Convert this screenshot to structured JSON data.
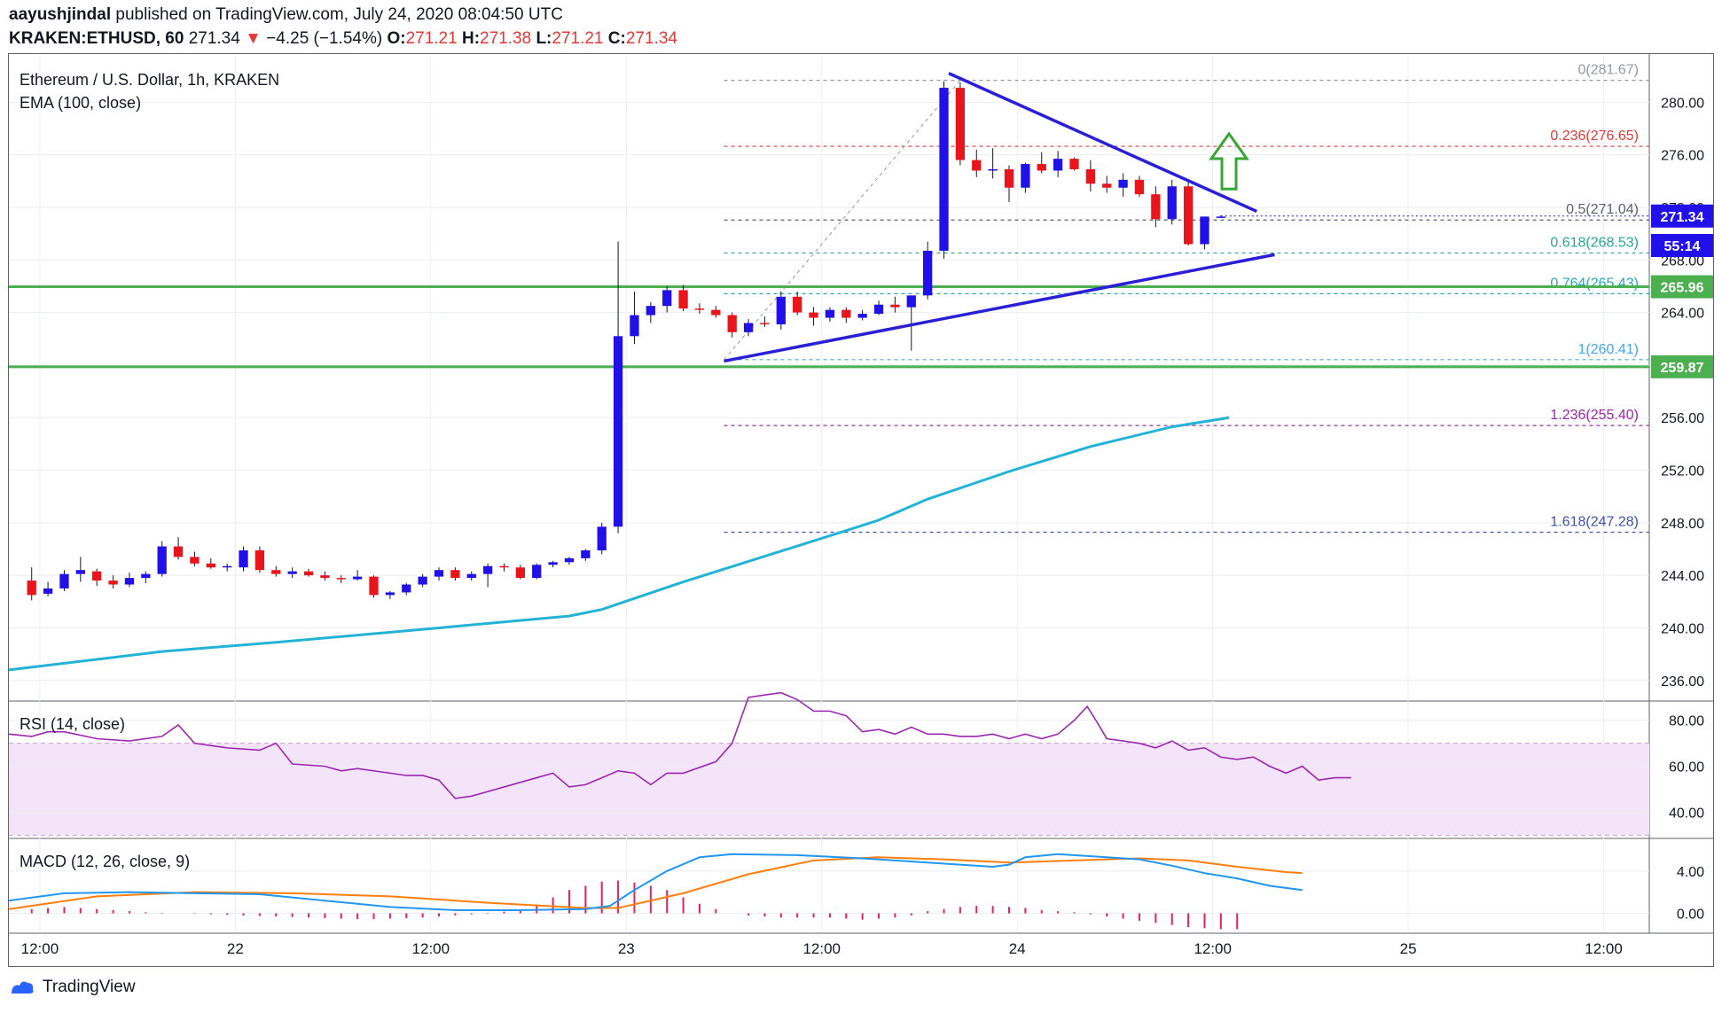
{
  "header": {
    "author": "aayushjindal",
    "published_text": "published on TradingView.com, July 24, 2020 08:04:50 UTC",
    "symbol": "KRAKEN:ETHUSD, 60",
    "last_price": "271.34",
    "change_arrow": "▼",
    "change": "−4.25 (−1.54%)",
    "o_label": "O:",
    "o_value": "271.21",
    "h_label": "H:",
    "h_value": "271.38",
    "l_label": "L:",
    "l_value": "271.21",
    "c_label": "C:",
    "c_value": "271.34"
  },
  "legend": {
    "title": "Ethereum / U.S. Dollar, 1h, KRAKEN",
    "ema": "EMA (100, close)",
    "rsi": "RSI (14, close)",
    "macd": "MACD (12, 26, close, 9)"
  },
  "footer": {
    "brand": "TradingView"
  },
  "colors": {
    "up": "#2110e8",
    "down": "#e8161c",
    "ema": "#22b3d6",
    "trend": "#2a1fd6",
    "support": "#4caf50",
    "rsi": "#9c27b0",
    "rsi_band": "#f3e4fa",
    "macd": "#2196f3",
    "signal": "#ff7f0e",
    "hist": "#e91e63",
    "arrow": "#3aa635"
  },
  "chart_data": [
    {
      "type": "candlestick",
      "title": "Ethereum / U.S. Dollar, 1h, KRAKEN",
      "ylim": [
        234.5,
        283.6
      ],
      "y_ticks": [
        236,
        240,
        244,
        248,
        252,
        256,
        260,
        264,
        268,
        272,
        276,
        280
      ],
      "y_tick_labels": [
        "236.00",
        "240.00",
        "244.00",
        "248.00",
        "252.00",
        "256.00",
        "260.00",
        "264.00",
        "268.00",
        "272.00",
        "276.00",
        "280.00"
      ],
      "x_ticks": [
        [
          "12:00",
          0.5
        ],
        [
          "22",
          12.5
        ],
        [
          "12:00",
          24.5
        ],
        [
          "23",
          36.5
        ],
        [
          "12:00",
          48.5
        ],
        [
          "24",
          60.5
        ],
        [
          "12:00",
          72.5
        ],
        [
          "25",
          84.5
        ],
        [
          "12:00",
          96.5
        ]
      ],
      "x_range": [
        -1.4,
        99.3
      ],
      "candles": [
        [
          243.6,
          244.6,
          242.1,
          242.5
        ],
        [
          242.6,
          243.5,
          242.4,
          243.0
        ],
        [
          243.0,
          244.4,
          242.8,
          244.1
        ],
        [
          244.1,
          245.4,
          243.5,
          244.4
        ],
        [
          244.3,
          244.5,
          243.2,
          243.6
        ],
        [
          243.6,
          244.0,
          243.0,
          243.3
        ],
        [
          243.3,
          244.2,
          243.1,
          243.8
        ],
        [
          243.8,
          244.3,
          243.4,
          244.1
        ],
        [
          244.1,
          246.6,
          243.9,
          246.2
        ],
        [
          246.2,
          246.9,
          245.2,
          245.4
        ],
        [
          245.4,
          245.8,
          244.7,
          244.9
        ],
        [
          244.9,
          245.3,
          244.5,
          244.6
        ],
        [
          244.6,
          244.9,
          244.3,
          244.7
        ],
        [
          244.6,
          246.2,
          244.3,
          245.9
        ],
        [
          245.9,
          246.2,
          244.2,
          244.4
        ],
        [
          244.4,
          244.7,
          243.9,
          244.1
        ],
        [
          244.1,
          244.6,
          243.8,
          244.3
        ],
        [
          244.3,
          244.5,
          243.9,
          244.0
        ],
        [
          244.0,
          244.3,
          243.6,
          243.8
        ],
        [
          243.8,
          244.0,
          243.4,
          243.7
        ],
        [
          243.7,
          244.4,
          243.6,
          243.9
        ],
        [
          243.9,
          244.0,
          242.3,
          242.5
        ],
        [
          242.5,
          242.8,
          242.2,
          242.7
        ],
        [
          242.7,
          243.4,
          242.5,
          243.3
        ],
        [
          243.3,
          244.1,
          243.1,
          243.9
        ],
        [
          243.9,
          244.6,
          243.6,
          244.4
        ],
        [
          244.4,
          244.6,
          243.6,
          243.8
        ],
        [
          243.8,
          244.3,
          243.6,
          244.1
        ],
        [
          244.1,
          244.9,
          243.1,
          244.7
        ],
        [
          244.7,
          244.9,
          244.3,
          244.6
        ],
        [
          244.6,
          244.8,
          243.7,
          243.8
        ],
        [
          243.8,
          244.9,
          243.7,
          244.8
        ],
        [
          244.8,
          245.1,
          244.6,
          245.0
        ],
        [
          245.0,
          245.4,
          244.8,
          245.3
        ],
        [
          245.3,
          246.0,
          245.1,
          245.9
        ],
        [
          245.9,
          248.0,
          245.6,
          247.7
        ],
        [
          247.7,
          269.4,
          247.2,
          262.2
        ],
        [
          262.2,
          265.6,
          261.6,
          263.8
        ],
        [
          263.8,
          264.8,
          263.2,
          264.5
        ],
        [
          264.5,
          266.0,
          264.0,
          265.7
        ],
        [
          265.7,
          266.1,
          264.1,
          264.3
        ],
        [
          264.3,
          264.7,
          263.9,
          264.2
        ],
        [
          264.2,
          264.5,
          263.6,
          263.8
        ],
        [
          263.8,
          264.0,
          262.1,
          262.5
        ],
        [
          262.5,
          263.5,
          262.2,
          263.2
        ],
        [
          263.2,
          263.7,
          262.9,
          263.1
        ],
        [
          263.1,
          265.6,
          262.7,
          265.2
        ],
        [
          265.2,
          265.6,
          263.8,
          264.0
        ],
        [
          264.0,
          264.4,
          263.0,
          263.6
        ],
        [
          263.6,
          264.4,
          263.3,
          264.2
        ],
        [
          264.2,
          264.4,
          263.2,
          263.6
        ],
        [
          263.6,
          264.2,
          263.4,
          263.9
        ],
        [
          263.9,
          264.9,
          263.8,
          264.6
        ],
        [
          264.6,
          265.2,
          264.0,
          264.4
        ],
        [
          264.4,
          265.2,
          261.1,
          265.3
        ],
        [
          265.3,
          269.4,
          265.0,
          268.7
        ],
        [
          268.7,
          281.6,
          268.1,
          281.1
        ],
        [
          281.1,
          281.5,
          275.2,
          275.6
        ],
        [
          275.6,
          276.4,
          274.3,
          274.8
        ],
        [
          274.8,
          276.5,
          274.2,
          274.9
        ],
        [
          274.9,
          275.2,
          272.4,
          273.5
        ],
        [
          273.5,
          275.4,
          273.1,
          275.3
        ],
        [
          275.3,
          276.2,
          274.6,
          274.8
        ],
        [
          274.8,
          276.3,
          274.3,
          275.7
        ],
        [
          275.7,
          275.8,
          274.8,
          274.9
        ],
        [
          274.9,
          275.6,
          273.2,
          273.8
        ],
        [
          273.8,
          274.4,
          273.1,
          273.5
        ],
        [
          273.5,
          274.6,
          272.8,
          274.1
        ],
        [
          274.1,
          274.4,
          272.8,
          273.0
        ],
        [
          273.0,
          273.6,
          270.5,
          271.1
        ],
        [
          271.1,
          274.1,
          270.7,
          273.6
        ],
        [
          273.6,
          274.0,
          269.1,
          269.2
        ],
        [
          269.2,
          271.3,
          268.8,
          271.3
        ],
        [
          271.2,
          271.4,
          271.2,
          271.3
        ]
      ],
      "ema_100": [
        [
          -1.4,
          236.8
        ],
        [
          8,
          238.2
        ],
        [
          15,
          238.9
        ],
        [
          25,
          240.0
        ],
        [
          33,
          240.9
        ],
        [
          35,
          241.4
        ],
        [
          40,
          243.5
        ],
        [
          50,
          247.4
        ],
        [
          52,
          248.2
        ],
        [
          55,
          249.8
        ],
        [
          60,
          251.9
        ],
        [
          65,
          253.8
        ],
        [
          70,
          255.3
        ],
        [
          73.5,
          256.0
        ]
      ],
      "fibonacci": [
        {
          "level": "0",
          "price": 281.67,
          "label": "0(281.67)",
          "color": "#9598a1"
        },
        {
          "level": "0.236",
          "price": 276.65,
          "label": "0.236(276.65)",
          "color": "#e53935"
        },
        {
          "level": "0.5",
          "price": 271.04,
          "label": "0.5(271.04)",
          "color": "#5d606b"
        },
        {
          "level": "0.618",
          "price": 268.53,
          "label": "0.618(268.53)",
          "color": "#26a69a"
        },
        {
          "level": "0.764",
          "price": 265.43,
          "label": "0.764(265.43)",
          "color": "#22a7c0"
        },
        {
          "level": "1",
          "price": 260.41,
          "label": "1(260.41)",
          "color": "#42a5f5"
        },
        {
          "level": "1.236",
          "price": 255.4,
          "label": "1.236(255.40)",
          "color": "#9c27b0"
        },
        {
          "level": "1.618",
          "price": 247.28,
          "label": "1.618(247.28)",
          "color": "#3f51b5"
        }
      ],
      "fib_start_x": 42.5,
      "horizontal_levels": [
        {
          "price": 265.96,
          "label": "265.96"
        },
        {
          "price": 259.87,
          "label": "259.87"
        }
      ],
      "trendlines": [
        {
          "x": [
            56.3,
            75.2
          ],
          "y": [
            282.2,
            271.7
          ]
        },
        {
          "x": [
            42.5,
            76.3
          ],
          "y": [
            260.3,
            268.4
          ]
        }
      ],
      "price_tags": [
        {
          "label": "271.34",
          "price": 271.34
        },
        {
          "label": "55:14",
          "price": 269.1
        }
      ],
      "up_arrow": {
        "x": 73.5,
        "y_base": 273.4,
        "y_tip": 277.6
      }
    },
    {
      "type": "line",
      "title": "RSI (14, close)",
      "ylim": [
        29,
        88
      ],
      "y_ticks": [
        40,
        60,
        80
      ],
      "y_tick_labels": [
        "40.00",
        "60.00",
        "80.00"
      ],
      "band": [
        30,
        70
      ],
      "values": [
        [
          -1.4,
          74
        ],
        [
          0,
          73
        ],
        [
          1,
          75
        ],
        [
          2,
          75
        ],
        [
          4,
          72
        ],
        [
          6,
          71
        ],
        [
          8,
          73
        ],
        [
          9,
          78
        ],
        [
          10,
          70
        ],
        [
          12,
          68
        ],
        [
          14,
          67
        ],
        [
          15,
          70
        ],
        [
          16,
          61
        ],
        [
          18,
          60
        ],
        [
          19,
          58
        ],
        [
          20,
          59
        ],
        [
          22,
          57
        ],
        [
          23,
          56
        ],
        [
          24,
          56
        ],
        [
          25,
          54
        ],
        [
          26,
          46
        ],
        [
          27,
          47
        ],
        [
          29,
          51
        ],
        [
          31,
          55
        ],
        [
          32,
          57
        ],
        [
          33,
          51
        ],
        [
          34,
          52
        ],
        [
          35,
          55
        ],
        [
          36,
          58
        ],
        [
          37,
          57
        ],
        [
          38,
          52
        ],
        [
          39,
          57
        ],
        [
          40,
          57
        ],
        [
          42,
          62
        ],
        [
          43,
          70
        ],
        [
          44,
          90
        ],
        [
          46,
          92
        ],
        [
          47,
          89
        ],
        [
          48,
          84
        ],
        [
          49,
          84
        ],
        [
          50,
          82
        ],
        [
          51,
          75
        ],
        [
          52,
          76
        ],
        [
          53,
          74
        ],
        [
          54,
          77
        ],
        [
          55,
          74
        ],
        [
          56,
          74
        ],
        [
          57,
          73
        ],
        [
          58,
          73
        ],
        [
          59,
          74
        ],
        [
          60,
          72
        ],
        [
          61,
          74
        ],
        [
          62,
          72
        ],
        [
          63,
          74
        ],
        [
          64,
          80
        ],
        [
          64.8,
          86
        ],
        [
          65.5,
          78
        ],
        [
          66,
          72
        ],
        [
          67,
          71
        ],
        [
          68,
          70
        ],
        [
          69,
          68
        ],
        [
          70,
          71
        ],
        [
          71,
          67
        ],
        [
          72,
          68
        ],
        [
          73,
          64
        ],
        [
          74,
          63
        ],
        [
          75,
          64
        ],
        [
          76,
          60
        ],
        [
          77,
          57
        ],
        [
          78,
          60
        ],
        [
          79,
          54
        ],
        [
          80,
          55
        ],
        [
          81,
          55
        ]
      ]
    },
    {
      "type": "macd",
      "title": "MACD (12, 26, close, 9)",
      "ylim": [
        -1.8,
        7.0
      ],
      "y_ticks": [
        0,
        4
      ],
      "y_tick_labels": [
        "0.00",
        "4.00"
      ],
      "macd": [
        [
          -1.4,
          1.2
        ],
        [
          2,
          1.9
        ],
        [
          6,
          2.0
        ],
        [
          10,
          1.9
        ],
        [
          14,
          1.8
        ],
        [
          18,
          1.2
        ],
        [
          22,
          0.6
        ],
        [
          26,
          0.3
        ],
        [
          30,
          0.3
        ],
        [
          34,
          0.4
        ],
        [
          35.5,
          0.7
        ],
        [
          37,
          2.2
        ],
        [
          39,
          4.0
        ],
        [
          41,
          5.3
        ],
        [
          43,
          5.6
        ],
        [
          47,
          5.5
        ],
        [
          51,
          5.2
        ],
        [
          55,
          4.8
        ],
        [
          57,
          4.6
        ],
        [
          59,
          4.4
        ],
        [
          60,
          4.6
        ],
        [
          61,
          5.3
        ],
        [
          63,
          5.6
        ],
        [
          66,
          5.3
        ],
        [
          68,
          5.1
        ],
        [
          70,
          4.5
        ],
        [
          72,
          3.8
        ],
        [
          74,
          3.3
        ],
        [
          76,
          2.6
        ],
        [
          78,
          2.2
        ]
      ],
      "signal": [
        [
          -1.4,
          0.4
        ],
        [
          4,
          1.6
        ],
        [
          10,
          2.0
        ],
        [
          16,
          1.9
        ],
        [
          22,
          1.6
        ],
        [
          28,
          1.0
        ],
        [
          34,
          0.5
        ],
        [
          36,
          0.5
        ],
        [
          40,
          1.9
        ],
        [
          44,
          3.7
        ],
        [
          48,
          5.0
        ],
        [
          52,
          5.3
        ],
        [
          56,
          5.1
        ],
        [
          60,
          4.8
        ],
        [
          64,
          5.0
        ],
        [
          68,
          5.2
        ],
        [
          71,
          5.0
        ],
        [
          74,
          4.4
        ],
        [
          77,
          3.9
        ],
        [
          78,
          3.8
        ]
      ],
      "histogram": [
        0.4,
        0.5,
        0.6,
        0.5,
        0.4,
        0.3,
        0.2,
        0.1,
        0.05,
        0.0,
        -0.05,
        -0.1,
        -0.15,
        -0.2,
        -0.25,
        -0.3,
        -0.35,
        -0.4,
        -0.45,
        -0.5,
        -0.55,
        -0.55,
        -0.5,
        -0.45,
        -0.4,
        -0.3,
        -0.2,
        -0.1,
        0.05,
        0.15,
        0.3,
        0.8,
        1.5,
        2.2,
        2.6,
        3.0,
        3.1,
        2.9,
        2.6,
        2.2,
        1.5,
        0.9,
        0.4,
        0.0,
        -0.2,
        -0.3,
        -0.4,
        -0.4,
        -0.4,
        -0.4,
        -0.5,
        -0.6,
        -0.5,
        -0.4,
        -0.2,
        0.2,
        0.4,
        0.6,
        0.7,
        0.7,
        0.6,
        0.5,
        0.3,
        0.2,
        0.1,
        -0.1,
        -0.3,
        -0.5,
        -0.7,
        -0.9,
        -1.1,
        -1.3,
        -1.4,
        -1.5,
        -1.5
      ],
      "histogram_start": 0
    }
  ]
}
